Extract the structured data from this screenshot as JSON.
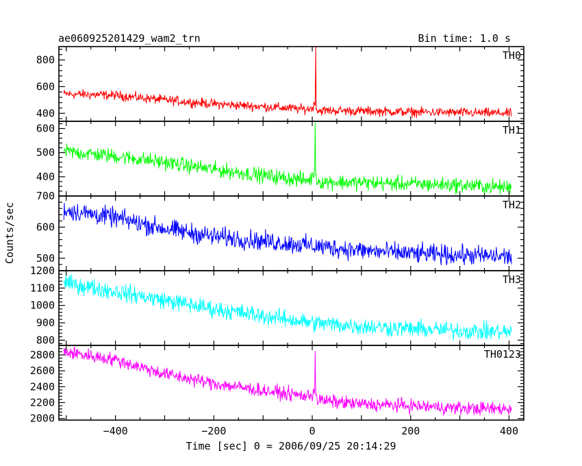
{
  "header": {
    "title": "ae060925201429_wam2_trn",
    "bin_time": "Bin time: 1.0 s"
  },
  "chart_data": {
    "type": "line",
    "xlabel": "Time [sec] 0 = 2006/09/25 20:14:29",
    "ylabel": "Counts/sec",
    "xlim": [
      -515,
      430
    ],
    "x_ticks": [
      -400,
      -200,
      0,
      200,
      400
    ],
    "x_tick_labels": [
      "−400",
      "−200",
      "0",
      "200",
      "400"
    ],
    "grid": false,
    "panels": [
      {
        "name": "TH0",
        "color": "#ff0000",
        "ylim": [
          340,
          900
        ],
        "y_ticks": [
          400,
          600,
          800
        ],
        "x_range": [
          -505,
          405
        ],
        "points": [
          [
            -505,
            545
          ],
          [
            -400,
            535
          ],
          [
            -300,
            500
          ],
          [
            -200,
            470
          ],
          [
            -100,
            450
          ],
          [
            -10,
            430
          ],
          [
            0,
            440
          ],
          [
            5,
            470
          ],
          [
            10,
            420
          ],
          [
            50,
            420
          ],
          [
            200,
            410
          ],
          [
            405,
            400
          ]
        ],
        "noise": 25,
        "spike": {
          "x": 7,
          "y": 900
        }
      },
      {
        "name": "TH1",
        "color": "#00ff00",
        "ylim": [
          320,
          630
        ],
        "y_ticks": [
          400,
          500,
          600
        ],
        "x_range": [
          -505,
          405
        ],
        "points": [
          [
            -505,
            505
          ],
          [
            -400,
            485
          ],
          [
            -300,
            460
          ],
          [
            -200,
            430
          ],
          [
            -100,
            405
          ],
          [
            -10,
            385
          ],
          [
            0,
            395
          ],
          [
            6,
            440
          ],
          [
            10,
            380
          ],
          [
            100,
            375
          ],
          [
            300,
            365
          ],
          [
            405,
            355
          ]
        ],
        "noise": 22,
        "spike": {
          "x": 6,
          "y": 625
        }
      },
      {
        "name": "TH2",
        "color": "#0000ff",
        "ylim": [
          460,
          700
        ],
        "y_ticks": [
          500,
          600,
          700
        ],
        "x_range": [
          -505,
          405
        ],
        "points": [
          [
            -505,
            655
          ],
          [
            -400,
            630
          ],
          [
            -300,
            595
          ],
          [
            -200,
            570
          ],
          [
            -100,
            555
          ],
          [
            0,
            540
          ],
          [
            100,
            525
          ],
          [
            200,
            515
          ],
          [
            300,
            510
          ],
          [
            405,
            505
          ]
        ],
        "noise": 22
      },
      {
        "name": "TH3",
        "color": "#00ffff",
        "ylim": [
          770,
          1200
        ],
        "y_ticks": [
          800,
          900,
          1000,
          1100,
          1200
        ],
        "x_range": [
          -505,
          405
        ],
        "points": [
          [
            -505,
            1130
          ],
          [
            -400,
            1080
          ],
          [
            -300,
            1030
          ],
          [
            -200,
            980
          ],
          [
            -100,
            940
          ],
          [
            0,
            900
          ],
          [
            100,
            880
          ],
          [
            200,
            865
          ],
          [
            300,
            855
          ],
          [
            405,
            845
          ]
        ],
        "noise": 35
      },
      {
        "name": "TH0123",
        "color": "#ff00ff",
        "ylim": [
          1980,
          2920
        ],
        "y_ticks": [
          2000,
          2200,
          2400,
          2600,
          2800
        ],
        "x_range": [
          -505,
          405
        ],
        "points": [
          [
            -505,
            2840
          ],
          [
            -400,
            2740
          ],
          [
            -300,
            2560
          ],
          [
            -200,
            2440
          ],
          [
            -100,
            2350
          ],
          [
            -10,
            2280
          ],
          [
            0,
            2300
          ],
          [
            5,
            2380
          ],
          [
            10,
            2230
          ],
          [
            100,
            2180
          ],
          [
            200,
            2160
          ],
          [
            300,
            2130
          ],
          [
            405,
            2120
          ]
        ],
        "noise": 60,
        "spike": {
          "x": 6,
          "y": 2850
        }
      }
    ]
  }
}
